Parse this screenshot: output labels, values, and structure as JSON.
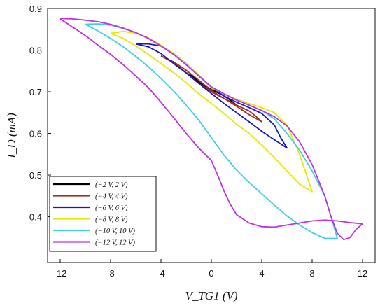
{
  "chart_data": {
    "type": "line",
    "xlabel": "V_TG1 (V)",
    "ylabel": "I_D (mA)",
    "xlim": [
      -13,
      13
    ],
    "ylim": [
      0.29,
      0.9
    ],
    "xticks": [
      -12,
      -8,
      -4,
      0,
      4,
      8,
      12
    ],
    "yticks": [
      0.4,
      0.5,
      0.6,
      0.7,
      0.8,
      0.9
    ],
    "grid": false,
    "legend_position": "bottom-left",
    "series": [
      {
        "name": "(−2 V, 2 V)",
        "color": "#000000",
        "points": [
          [
            -2,
            0.746
          ],
          [
            -1.5,
            0.735
          ],
          [
            -1,
            0.722
          ],
          [
            -0.5,
            0.712
          ],
          [
            0,
            0.701
          ],
          [
            0.5,
            0.692
          ],
          [
            1,
            0.684
          ],
          [
            1.5,
            0.676
          ],
          [
            2,
            0.668
          ],
          [
            1.5,
            0.68
          ],
          [
            1,
            0.69
          ],
          [
            0.5,
            0.698
          ],
          [
            0,
            0.705
          ],
          [
            -0.5,
            0.715
          ],
          [
            -1,
            0.726
          ],
          [
            -1.5,
            0.737
          ],
          [
            -2,
            0.746
          ]
        ]
      },
      {
        "name": "(−4 V, 4 V)",
        "color": "#a03020",
        "points": [
          [
            -4,
            0.786
          ],
          [
            -3,
            0.772
          ],
          [
            -2,
            0.752
          ],
          [
            -1,
            0.728
          ],
          [
            0,
            0.703
          ],
          [
            1,
            0.684
          ],
          [
            2,
            0.665
          ],
          [
            3,
            0.645
          ],
          [
            4,
            0.628
          ],
          [
            3.5,
            0.642
          ],
          [
            3,
            0.654
          ],
          [
            2,
            0.668
          ],
          [
            1,
            0.684
          ],
          [
            0,
            0.7
          ],
          [
            -1,
            0.72
          ],
          [
            -2,
            0.746
          ],
          [
            -3,
            0.77
          ],
          [
            -4,
            0.786
          ]
        ]
      },
      {
        "name": "(−6 V, 6 V)",
        "color": "#1818c8",
        "points": [
          [
            -6,
            0.815
          ],
          [
            -5,
            0.808
          ],
          [
            -4,
            0.792
          ],
          [
            -3,
            0.768
          ],
          [
            -2,
            0.745
          ],
          [
            -1,
            0.72
          ],
          [
            0,
            0.696
          ],
          [
            1,
            0.672
          ],
          [
            2,
            0.65
          ],
          [
            3,
            0.628
          ],
          [
            4,
            0.605
          ],
          [
            5,
            0.585
          ],
          [
            6,
            0.565
          ],
          [
            5.5,
            0.59
          ],
          [
            5,
            0.62
          ],
          [
            4,
            0.648
          ],
          [
            3,
            0.662
          ],
          [
            2,
            0.675
          ],
          [
            1,
            0.69
          ],
          [
            0,
            0.71
          ],
          [
            -1,
            0.74
          ],
          [
            -2,
            0.768
          ],
          [
            -3,
            0.792
          ],
          [
            -4,
            0.81
          ],
          [
            -5,
            0.815
          ],
          [
            -6,
            0.815
          ]
        ]
      },
      {
        "name": "(−8 V, 8 V)",
        "color": "#e8e800",
        "points": [
          [
            -8,
            0.84
          ],
          [
            -7,
            0.828
          ],
          [
            -6,
            0.81
          ],
          [
            -5,
            0.79
          ],
          [
            -4,
            0.768
          ],
          [
            -3,
            0.746
          ],
          [
            -2,
            0.722
          ],
          [
            -1,
            0.695
          ],
          [
            0,
            0.672
          ],
          [
            1,
            0.648
          ],
          [
            2,
            0.622
          ],
          [
            3,
            0.6
          ],
          [
            4,
            0.572
          ],
          [
            5,
            0.542
          ],
          [
            6,
            0.51
          ],
          [
            7,
            0.478
          ],
          [
            8,
            0.46
          ],
          [
            7,
            0.55
          ],
          [
            6,
            0.62
          ],
          [
            5,
            0.65
          ],
          [
            4,
            0.662
          ],
          [
            3,
            0.672
          ],
          [
            2,
            0.682
          ],
          [
            1,
            0.695
          ],
          [
            0,
            0.71
          ],
          [
            -1,
            0.74
          ],
          [
            -2,
            0.768
          ],
          [
            -3,
            0.792
          ],
          [
            -4,
            0.812
          ],
          [
            -5,
            0.83
          ],
          [
            -6,
            0.84
          ],
          [
            -7,
            0.845
          ],
          [
            -8,
            0.84
          ]
        ]
      },
      {
        "name": "(−10 V, 10 V)",
        "color": "#40d0e8",
        "points": [
          [
            -10,
            0.862
          ],
          [
            -9,
            0.846
          ],
          [
            -8,
            0.828
          ],
          [
            -7,
            0.808
          ],
          [
            -6,
            0.785
          ],
          [
            -5,
            0.76
          ],
          [
            -4,
            0.732
          ],
          [
            -3,
            0.702
          ],
          [
            -2,
            0.668
          ],
          [
            -1,
            0.632
          ],
          [
            0,
            0.59
          ],
          [
            1,
            0.548
          ],
          [
            2,
            0.512
          ],
          [
            3,
            0.482
          ],
          [
            4,
            0.455
          ],
          [
            5,
            0.428
          ],
          [
            6,
            0.402
          ],
          [
            7,
            0.38
          ],
          [
            8,
            0.362
          ],
          [
            9,
            0.348
          ],
          [
            10,
            0.348
          ],
          [
            9.5,
            0.4
          ],
          [
            9,
            0.45
          ],
          [
            8,
            0.51
          ],
          [
            7,
            0.56
          ],
          [
            6,
            0.6
          ],
          [
            5,
            0.635
          ],
          [
            4,
            0.655
          ],
          [
            3,
            0.668
          ],
          [
            2,
            0.68
          ],
          [
            1,
            0.695
          ],
          [
            0,
            0.712
          ],
          [
            -1,
            0.738
          ],
          [
            -2,
            0.765
          ],
          [
            -3,
            0.79
          ],
          [
            -4,
            0.81
          ],
          [
            -5,
            0.828
          ],
          [
            -6,
            0.842
          ],
          [
            -7,
            0.852
          ],
          [
            -8,
            0.86
          ],
          [
            -9,
            0.863
          ],
          [
            -10,
            0.862
          ]
        ]
      },
      {
        "name": "(−12 V, 12 V)",
        "color": "#c030e8",
        "points": [
          [
            -12,
            0.875
          ],
          [
            -11,
            0.855
          ],
          [
            -10,
            0.835
          ],
          [
            -9,
            0.812
          ],
          [
            -8,
            0.79
          ],
          [
            -7,
            0.765
          ],
          [
            -6,
            0.738
          ],
          [
            -5,
            0.71
          ],
          [
            -4,
            0.675
          ],
          [
            -3,
            0.638
          ],
          [
            -2,
            0.6
          ],
          [
            -1,
            0.565
          ],
          [
            0,
            0.535
          ],
          [
            0.5,
            0.5
          ],
          [
            1,
            0.462
          ],
          [
            1.5,
            0.43
          ],
          [
            2,
            0.405
          ],
          [
            3,
            0.385
          ],
          [
            4,
            0.376
          ],
          [
            5,
            0.375
          ],
          [
            6,
            0.38
          ],
          [
            7,
            0.385
          ],
          [
            8,
            0.39
          ],
          [
            9,
            0.392
          ],
          [
            10,
            0.39
          ],
          [
            11,
            0.386
          ],
          [
            12,
            0.383
          ],
          [
            11.5,
            0.37
          ],
          [
            11,
            0.35
          ],
          [
            10.5,
            0.345
          ],
          [
            10,
            0.36
          ],
          [
            9.5,
            0.4
          ],
          [
            9,
            0.45
          ],
          [
            8,
            0.525
          ],
          [
            7,
            0.58
          ],
          [
            6,
            0.618
          ],
          [
            5,
            0.64
          ],
          [
            4,
            0.655
          ],
          [
            3,
            0.668
          ],
          [
            2,
            0.68
          ],
          [
            1,
            0.695
          ],
          [
            0,
            0.712
          ],
          [
            -1,
            0.738
          ],
          [
            -2,
            0.765
          ],
          [
            -3,
            0.79
          ],
          [
            -4,
            0.81
          ],
          [
            -5,
            0.828
          ],
          [
            -6,
            0.842
          ],
          [
            -7,
            0.853
          ],
          [
            -8,
            0.862
          ],
          [
            -9,
            0.868
          ],
          [
            -10,
            0.872
          ],
          [
            -11,
            0.875
          ],
          [
            -12,
            0.876
          ]
        ]
      }
    ]
  }
}
